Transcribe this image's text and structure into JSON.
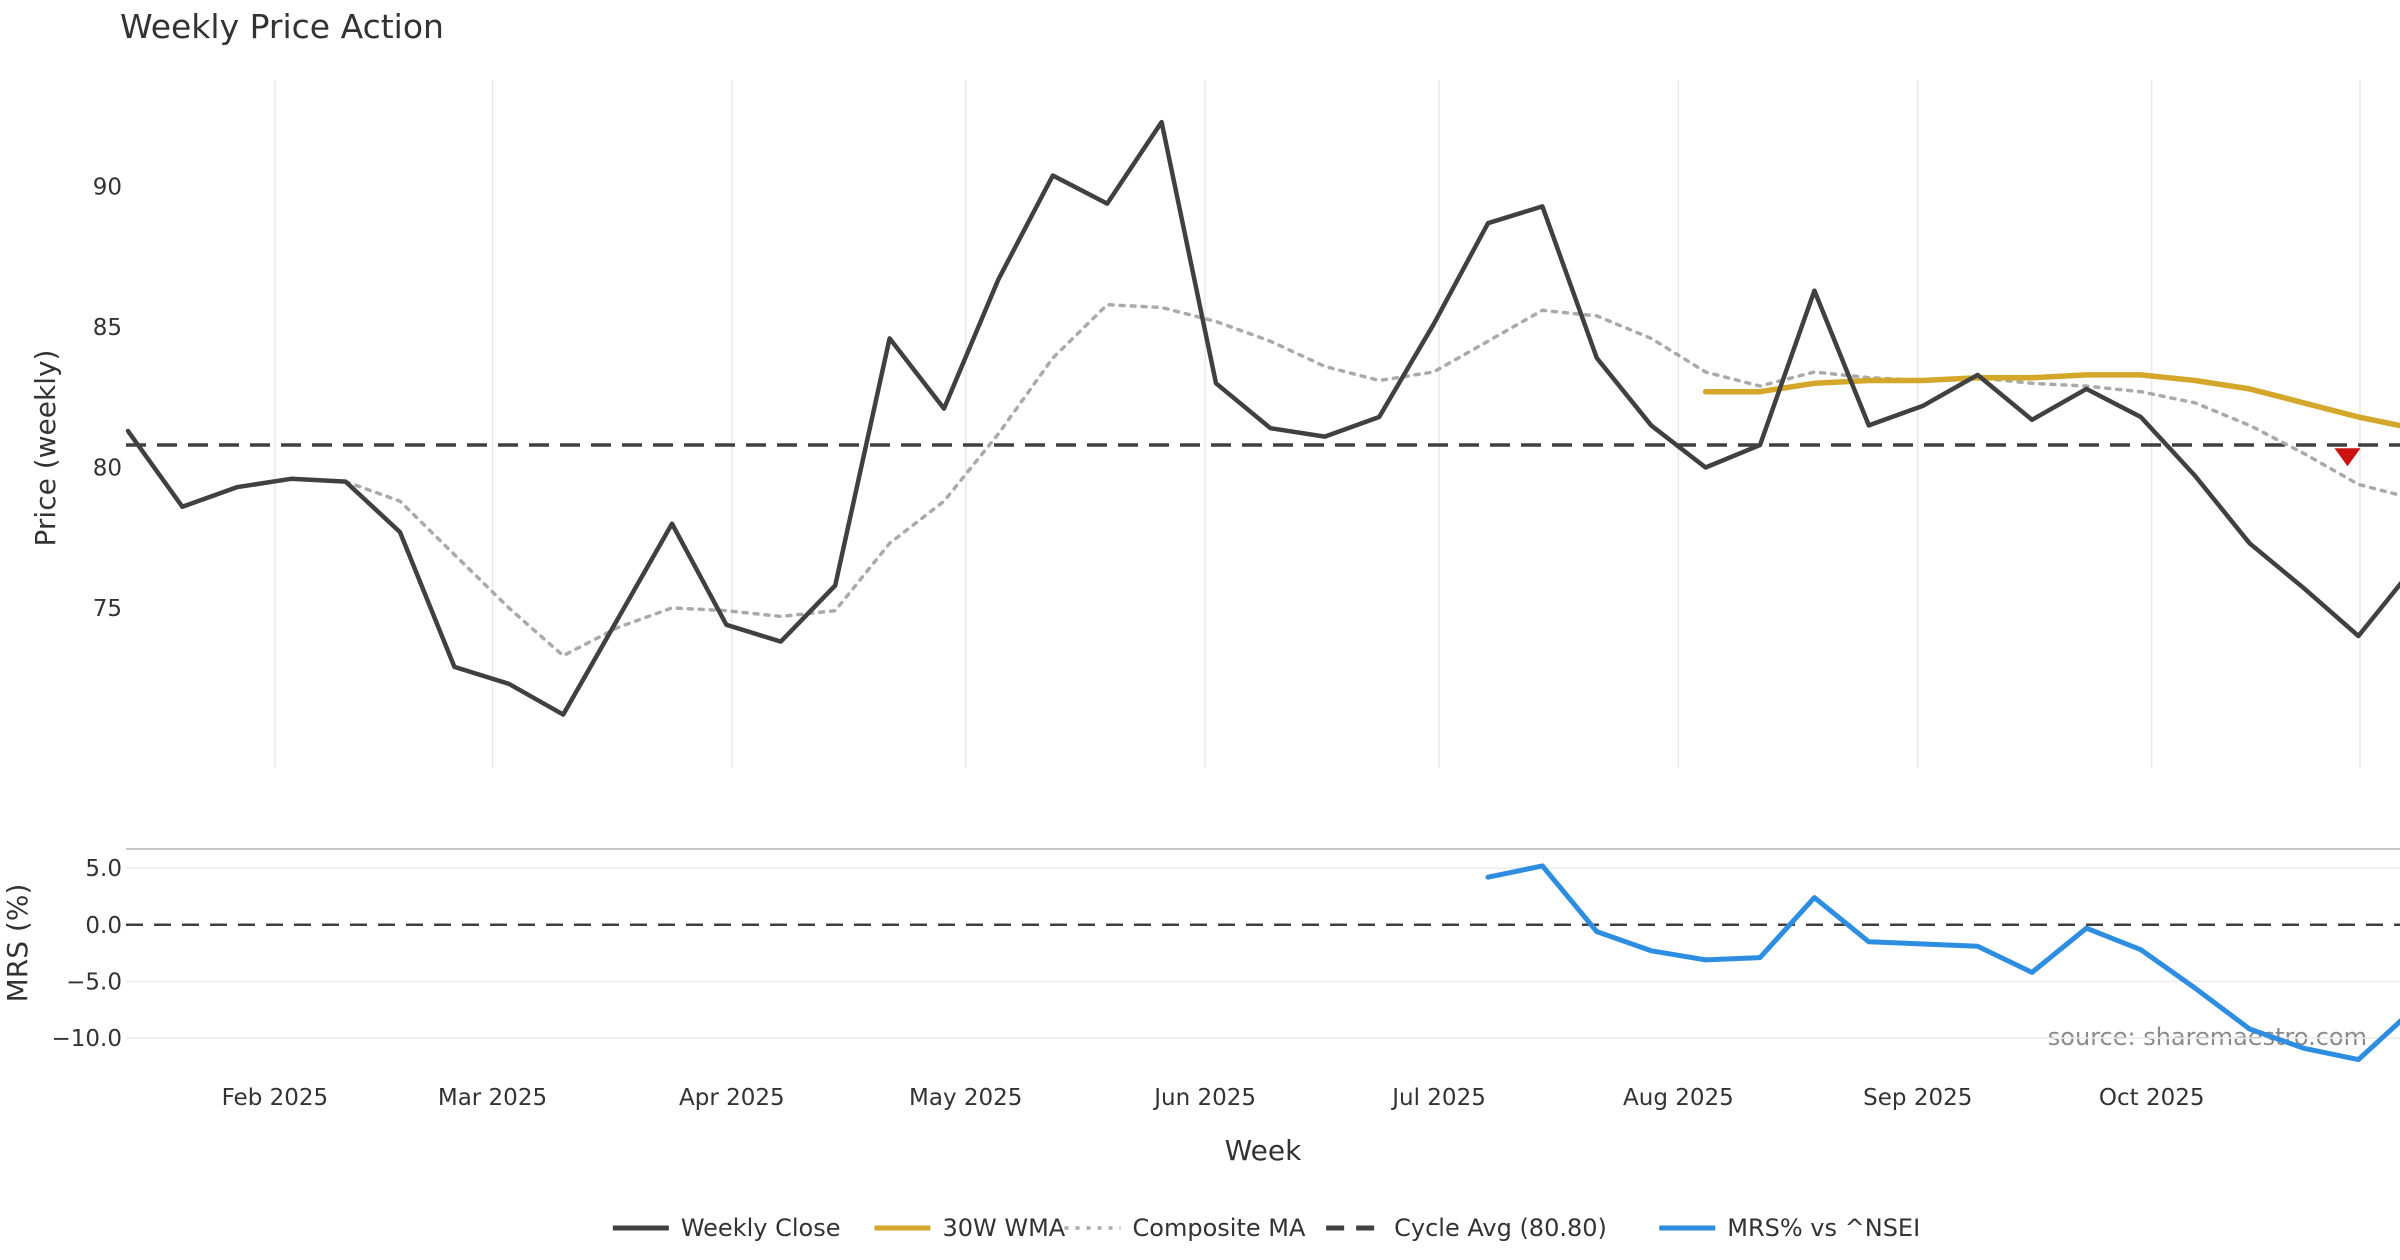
{
  "chart_data": {
    "type": "line",
    "title": "Weekly Price Action",
    "xlabel": "Week",
    "source_note": "source: sharemaestro.com",
    "x_ticks": [
      "Feb 2025",
      "Mar 2025",
      "Apr 2025",
      "May 2025",
      "Jun 2025",
      "Jul 2025",
      "Aug 2025",
      "Sep 2025",
      "Oct 2025"
    ],
    "x_tick_week_index": [
      2.7,
      6.7,
      11.1,
      15.4,
      19.8,
      24.1,
      28.5,
      32.9,
      37.2
    ],
    "price_panel": {
      "ylabel": "Price (weekly)",
      "ylim": [
        69.3,
        93.8
      ],
      "y_ticks": [
        75,
        80,
        85,
        90
      ],
      "series": [
        {
          "name": "Weekly Close",
          "color": "#404040",
          "style": "solid",
          "start_index": 0,
          "values": [
            81.3,
            78.6,
            79.3,
            79.6,
            79.5,
            77.7,
            72.9,
            72.3,
            71.2,
            74.6,
            78.0,
            74.4,
            73.8,
            75.8,
            84.6,
            82.1,
            86.7,
            90.4,
            89.4,
            92.3,
            83.0,
            81.4,
            81.1,
            81.8,
            85.1,
            88.7,
            89.3,
            83.9,
            81.5,
            80.0,
            80.8,
            86.3,
            81.5,
            82.2,
            83.3,
            81.7,
            82.8,
            81.8,
            79.7,
            77.3,
            75.7,
            74.0,
            76.4
          ]
        },
        {
          "name": "30W WMA",
          "color": "#d4a62a",
          "style": "solid",
          "start_index": 29,
          "values": [
            82.7,
            82.7,
            83.0,
            83.1,
            83.1,
            83.2,
            83.2,
            83.3,
            83.3,
            83.1,
            82.8,
            82.3,
            81.8,
            81.4
          ]
        },
        {
          "name": "Composite MA",
          "color": "#aaaaaa",
          "style": "dotted",
          "start_index": 4,
          "values": [
            79.5,
            78.8,
            76.9,
            75.0,
            73.3,
            74.3,
            75.0,
            74.9,
            74.7,
            74.9,
            77.3,
            78.8,
            81.2,
            83.9,
            85.8,
            85.7,
            85.2,
            84.5,
            83.6,
            83.1,
            83.4,
            84.5,
            85.6,
            85.4,
            84.6,
            83.4,
            82.9,
            83.4,
            83.2,
            83.1,
            83.2,
            83.0,
            82.9,
            82.7,
            82.3,
            81.5,
            80.5,
            79.4,
            78.9
          ]
        }
      ],
      "reference_line": {
        "name": "Cycle Avg (80.80)",
        "value": 80.8,
        "color": "#404040",
        "style": "dashed"
      },
      "markers": [
        {
          "type": "down-triangle",
          "week_index": 40.8,
          "value": 80.4,
          "color": "#cc1111"
        }
      ]
    },
    "mrs_panel": {
      "ylabel": "MRS (%)",
      "ylim": [
        -12.2,
        6.6
      ],
      "y_ticks": [
        5.0,
        0.0,
        -5.0,
        -10.0
      ],
      "y_tick_labels": [
        "5.0",
        "0.0",
        "−5.0",
        "−10.0"
      ],
      "zero_line": 0,
      "series": [
        {
          "name": "MRS% vs ^NSEI",
          "color": "#2d8de0",
          "style": "solid",
          "start_index": 25,
          "values": [
            4.2,
            5.2,
            -0.6,
            -2.3,
            -3.1,
            -2.9,
            2.4,
            -1.5,
            -1.7,
            -1.9,
            -4.2,
            -0.3,
            -2.2,
            -5.6,
            -9.2,
            -10.9,
            -11.9,
            -7.5
          ]
        }
      ]
    },
    "legend": {
      "position": "bottom-center",
      "entries": [
        {
          "label": "Weekly Close",
          "color": "#404040",
          "style": "solid"
        },
        {
          "label": "30W WMA",
          "color": "#d4a62a",
          "style": "solid"
        },
        {
          "label": "Composite MA",
          "color": "#aaaaaa",
          "style": "dotted"
        },
        {
          "label": "Cycle Avg (80.80)",
          "color": "#404040",
          "style": "dashed"
        },
        {
          "label": "MRS% vs ^NSEI",
          "color": "#2d8de0",
          "style": "solid"
        }
      ]
    }
  }
}
